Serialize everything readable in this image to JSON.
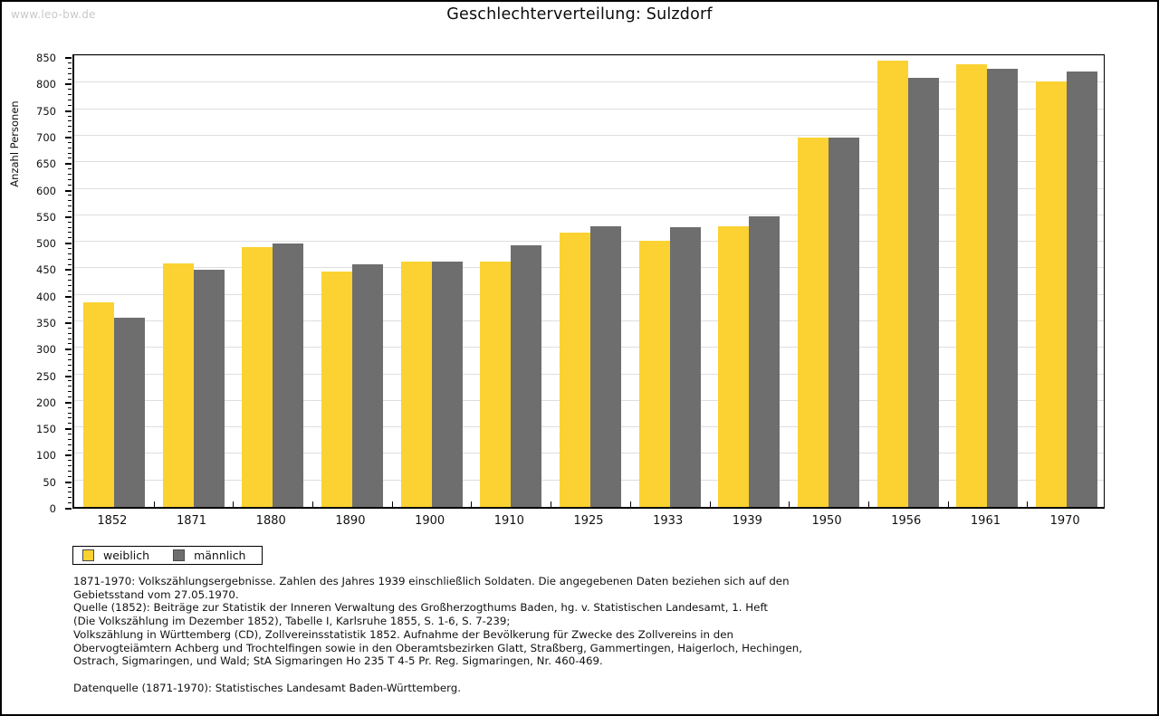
{
  "watermark": "www.leo-bw.de",
  "title": "Geschlechterverteilung: Sulzdorf",
  "y_axis_title": "Anzahl Personen",
  "colors": {
    "female_bar": "#fbd232",
    "male_bar": "#6e6e6e",
    "gridline": "#dedede",
    "watermark": "#c9c9c9",
    "axis": "#000000"
  },
  "chart_data": {
    "type": "bar",
    "title": "Geschlechterverteilung: Sulzdorf",
    "xlabel": "",
    "ylabel": "Anzahl Personen",
    "categories": [
      "1852",
      "1871",
      "1880",
      "1890",
      "1900",
      "1910",
      "1925",
      "1933",
      "1939",
      "1950",
      "1956",
      "1961",
      "1970"
    ],
    "series": [
      {
        "name": "weiblich",
        "color": "#fbd232",
        "values": [
          385,
          460,
          490,
          444,
          462,
          462,
          517,
          502,
          530,
          697,
          842,
          834,
          803
        ]
      },
      {
        "name": "männlich",
        "color": "#6e6e6e",
        "values": [
          356,
          448,
          497,
          457,
          462,
          494,
          529,
          528,
          548,
          697,
          809,
          827,
          822
        ]
      }
    ],
    "ylim": [
      0,
      857
    ],
    "ytick_major_step": 50,
    "ytick_minor_step": 10,
    "ytick_label_max": 850,
    "grid": true,
    "legend_position": "below-left"
  },
  "legend": {
    "items": [
      {
        "label": "weiblich",
        "color": "#fbd232"
      },
      {
        "label": "männlich",
        "color": "#6e6e6e"
      }
    ]
  },
  "footnotes": {
    "lines": [
      "1871-1970: Volkszählungsergebnisse. Zahlen des Jahres 1939 einschließlich Soldaten. Die angegebenen Daten beziehen sich auf den",
      "Gebietsstand vom 27.05.1970.",
      "Quelle (1852): Beiträge zur Statistik der Inneren Verwaltung des Großherzogthums Baden, hg. v. Statistischen Landesamt, 1. Heft",
      "(Die Volkszählung im Dezember 1852), Tabelle I, Karlsruhe 1855, S. 1-6, S. 7-239;",
      "Volkszählung in Württemberg (CD), Zollvereinsstatistik 1852. Aufnahme der Bevölkerung für Zwecke des Zollvereins in den",
      "Obervogteiämtern Achberg und Trochtelfingen sowie in den Oberamtsbezirken Glatt, Straßberg, Gammertingen, Haigerloch, Hechingen,",
      "Ostrach, Sigmaringen, und Wald; StA Sigmaringen Ho 235 T 4-5 Pr. Reg. Sigmaringen, Nr. 460-469."
    ],
    "datasource": "Datenquelle (1871-1970): Statistisches Landesamt Baden-Württemberg."
  }
}
